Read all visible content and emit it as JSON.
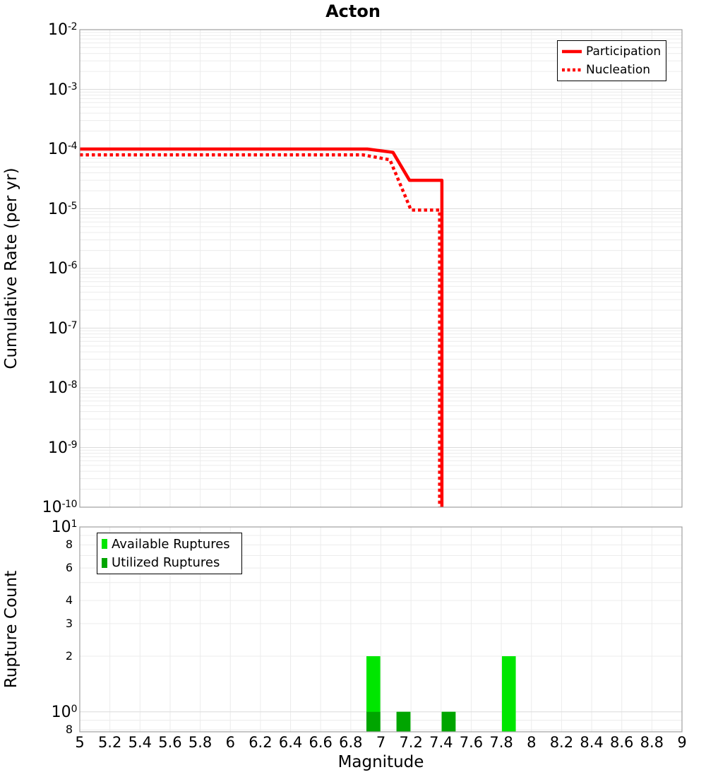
{
  "title": "Acton",
  "colors": {
    "line_red": "#ff0000",
    "available_green": "#00e600",
    "utilized_green": "#00a500",
    "grid_minor": "#ececec",
    "grid_major": "#dcdcdc",
    "grid_vertical": "#ececec",
    "panel_border": "#a0a0a0"
  },
  "chart_data": [
    {
      "type": "line",
      "panel": "top",
      "title": "Acton",
      "xlabel": "",
      "ylabel": "Cumulative Rate (per yr)",
      "x_axis": {
        "min": 5,
        "max": 9,
        "tick_step": 0.2
      },
      "y_axis": {
        "scale": "log",
        "min_exp": -10,
        "max_exp": -2,
        "tick_exponents": [
          -2,
          -3,
          -4,
          -5,
          -6,
          -7,
          -8,
          -9,
          -10
        ]
      },
      "legend_position": "top-right",
      "grid": true,
      "series": [
        {
          "name": "Participation",
          "color": "#ff0000",
          "style": "solid",
          "points": [
            [
              5.0,
              0.0001
            ],
            [
              6.91,
              0.0001
            ],
            [
              7.08,
              8.8e-05
            ],
            [
              7.19,
              3e-05
            ],
            [
              7.405,
              3e-05
            ],
            [
              7.405,
              1e-10
            ]
          ]
        },
        {
          "name": "Nucleation",
          "color": "#ff0000",
          "style": "dotted",
          "points": [
            [
              5.0,
              8e-05
            ],
            [
              6.88,
              8e-05
            ],
            [
              7.06,
              6.6e-05
            ],
            [
              7.2,
              9.5e-06
            ],
            [
              7.39,
              9.5e-06
            ],
            [
              7.39,
              1e-10
            ]
          ]
        }
      ]
    },
    {
      "type": "bar",
      "panel": "bottom",
      "xlabel": "Magnitude",
      "ylabel": "Rupture Count",
      "x_axis": {
        "min": 5,
        "max": 9,
        "tick_step": 0.2,
        "tick_labels": [
          "5",
          "5.2",
          "5.4",
          "5.6",
          "5.8",
          "6",
          "6.2",
          "6.4",
          "6.6",
          "6.8",
          "7",
          "7.2",
          "7.4",
          "7.6",
          "7.8",
          "8",
          "8.2",
          "8.4",
          "8.6",
          "8.8",
          "9"
        ]
      },
      "y_axis": {
        "scale": "log",
        "min": 0.78,
        "max": 10,
        "ticks": [
          {
            "value": 10,
            "exp": 1
          },
          {
            "value": 8,
            "label": "8"
          },
          {
            "value": 6,
            "label": "6"
          },
          {
            "value": 4,
            "label": "4"
          },
          {
            "value": 3,
            "label": "3"
          },
          {
            "value": 2,
            "label": "2"
          },
          {
            "value": 1,
            "exp": 0
          },
          {
            "value": 0.8,
            "label": "8"
          }
        ],
        "minor_gridline_values": [
          0.8,
          0.9,
          2,
          3,
          4,
          5,
          6,
          7,
          8,
          9
        ],
        "major_gridline_values": [
          1
        ]
      },
      "bin_width": 0.1,
      "legend_position": "top-left",
      "grid": true,
      "series": [
        {
          "name": "Available Ruptures",
          "color": "#00e600",
          "bars": [
            {
              "magnitude": 6.95,
              "count": 2
            },
            {
              "magnitude": 7.15,
              "count": 1
            },
            {
              "magnitude": 7.45,
              "count": 1
            },
            {
              "magnitude": 7.85,
              "count": 2
            }
          ]
        },
        {
          "name": "Utilized Ruptures",
          "color": "#00a500",
          "bars": [
            {
              "magnitude": 6.95,
              "count": 1
            },
            {
              "magnitude": 7.15,
              "count": 1
            },
            {
              "magnitude": 7.45,
              "count": 1
            }
          ]
        }
      ]
    }
  ]
}
